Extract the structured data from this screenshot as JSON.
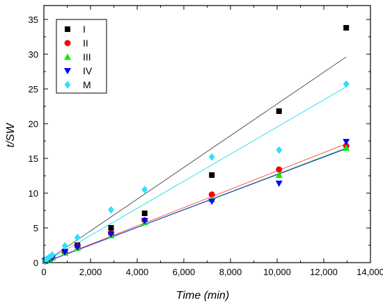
{
  "chart_data": {
    "type": "scatter",
    "title": "",
    "xlabel": "Time (min)",
    "ylabel": "t/SW",
    "xlim": [
      0,
      14000
    ],
    "ylim": [
      0,
      37
    ],
    "x_ticks": [
      0,
      2000,
      4000,
      6000,
      8000,
      10000,
      12000,
      14000
    ],
    "x_tick_labels": [
      "0",
      "2,000",
      "4,000",
      "6,000",
      "8,000",
      "10,000",
      "12,000",
      "14,000"
    ],
    "y_ticks": [
      0,
      5,
      10,
      15,
      20,
      25,
      30,
      35
    ],
    "y_tick_labels": [
      "0",
      "5",
      "10",
      "15",
      "20",
      "25",
      "30",
      "35"
    ],
    "grid": false,
    "legend_position": "top-left",
    "series": [
      {
        "name": "I",
        "marker": "square",
        "color": "#000000",
        "x": [
          60,
          120,
          240,
          360,
          900,
          1440,
          2880,
          4320,
          7200,
          10080,
          12960
        ],
        "y": [
          0.3,
          0.4,
          0.6,
          0.8,
          1.6,
          2.5,
          5.0,
          7.1,
          12.6,
          21.8,
          33.8
        ],
        "fit": {
          "x": [
            0,
            12960
          ],
          "y": [
            -0.5,
            29.6
          ],
          "color": "#555555"
        }
      },
      {
        "name": "II",
        "marker": "circle",
        "color": "#ff0000",
        "x": [
          60,
          120,
          240,
          360,
          900,
          1440,
          2880,
          4320,
          7200,
          10080,
          12960
        ],
        "y": [
          0.2,
          0.3,
          0.5,
          0.7,
          1.5,
          2.3,
          4.2,
          6.1,
          9.8,
          13.4,
          16.8
        ],
        "fit": {
          "x": [
            0,
            12960
          ],
          "y": [
            0.0,
            17.1
          ],
          "color": "#ff5050"
        }
      },
      {
        "name": "III",
        "marker": "triangle-up",
        "color": "#00ee00",
        "x": [
          60,
          120,
          240,
          360,
          900,
          1440,
          2880,
          4320,
          7200,
          10080,
          12960
        ],
        "y": [
          0.2,
          0.3,
          0.5,
          0.7,
          1.4,
          2.1,
          3.9,
          5.8,
          9.1,
          12.6,
          16.5
        ],
        "fit": {
          "x": [
            0,
            12960
          ],
          "y": [
            0.0,
            16.5
          ],
          "color": "#20c020"
        }
      },
      {
        "name": "IV",
        "marker": "triangle-down",
        "color": "#0000ff",
        "x": [
          60,
          120,
          240,
          360,
          900,
          1440,
          2880,
          4320,
          7200,
          10080,
          12960
        ],
        "y": [
          0.2,
          0.3,
          0.5,
          0.7,
          1.5,
          2.2,
          4.1,
          6.0,
          8.8,
          11.4,
          17.4
        ],
        "fit": {
          "x": [
            0,
            12960
          ],
          "y": [
            0.0,
            16.4
          ],
          "color": "#3030ff"
        }
      },
      {
        "name": "M",
        "marker": "diamond",
        "color": "#33ddff",
        "x": [
          60,
          120,
          240,
          360,
          900,
          1440,
          2880,
          4320,
          7200,
          10080,
          12960
        ],
        "y": [
          0.3,
          0.5,
          0.8,
          1.1,
          2.4,
          3.6,
          7.6,
          10.5,
          15.2,
          16.2,
          25.7
        ],
        "fit": {
          "x": [
            0,
            12960
          ],
          "y": [
            0.0,
            25.3
          ],
          "color": "#33ddee"
        }
      }
    ]
  }
}
